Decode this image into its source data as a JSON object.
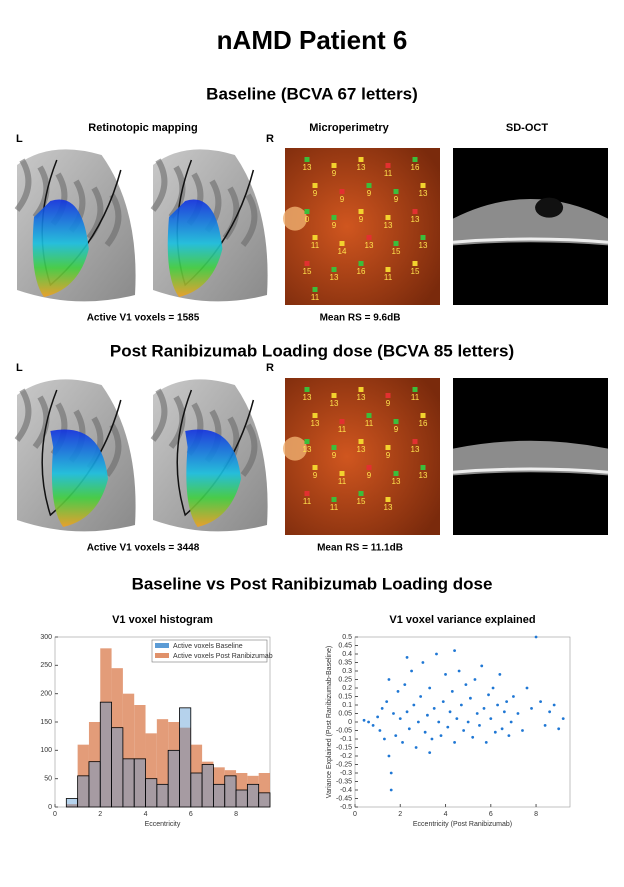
{
  "title": "nAMD Patient 6",
  "sections": [
    {
      "title": "Baseline (BCVA 67 letters)",
      "panel_titles": [
        "Retinotopic mapping",
        "Microperimetry",
        "SD-OCT"
      ],
      "left_label": "L",
      "right_label": "R",
      "voxels_caption": "Active V1 voxels = 1585",
      "rs_caption": "Mean RS = 9.6dB",
      "mp_points": [
        13,
        9,
        13,
        11,
        16,
        9,
        9,
        9,
        9,
        13,
        0,
        9,
        9,
        13,
        13,
        11,
        14,
        13,
        15,
        13,
        15,
        13,
        16,
        11,
        15,
        11
      ]
    },
    {
      "title": "Post Ranibizumab Loading dose (BCVA 85 letters)",
      "left_label": "L",
      "right_label": "R",
      "voxels_caption": "Active V1 voxels = 3448",
      "rs_caption": "Mean RS = 11.1dB",
      "mp_points": [
        13,
        13,
        13,
        9,
        11,
        13,
        11,
        11,
        9,
        16,
        13,
        9,
        13,
        9,
        13,
        9,
        11,
        9,
        13,
        13,
        11,
        11,
        15,
        13
      ]
    }
  ],
  "comparison_title": "Baseline vs Post Ranibizumab Loading dose",
  "chart_data": [
    {
      "type": "histogram",
      "title": "V1 voxel histogram",
      "x_label": "Eccentricity",
      "bins": [
        0.5,
        1,
        1.5,
        2,
        2.5,
        3,
        3.5,
        4,
        4.5,
        5,
        5.5,
        6,
        6.5,
        7,
        7.5,
        8,
        8.5,
        9,
        9.5
      ],
      "series": [
        {
          "name": "Active voxels Baseline",
          "color": "#5b9bd5",
          "values": [
            15,
            55,
            80,
            185,
            140,
            85,
            85,
            50,
            40,
            100,
            175,
            60,
            75,
            40,
            55,
            30,
            40,
            25
          ]
        },
        {
          "name": "Active voxels Post Ranibizumab",
          "color": "#e0916a",
          "values": [
            5,
            110,
            150,
            280,
            245,
            200,
            180,
            130,
            155,
            150,
            140,
            110,
            80,
            70,
            65,
            60,
            55,
            60
          ]
        }
      ],
      "xlim": [
        0,
        9.5
      ],
      "xticks": [
        0,
        2,
        4,
        6,
        8
      ],
      "ylim": [
        0,
        300
      ],
      "yticks": [
        0,
        50,
        100,
        150,
        200,
        250,
        300
      ],
      "legend": "top-right"
    },
    {
      "type": "scatter",
      "title": "V1 voxel variance explained",
      "x_label": "Eccentricity (Post Ranibizumab)",
      "y_label": "Variance Explained (Post Ranibizumab-Baseline)",
      "color": "#1f77d4",
      "x": [
        0.4,
        0.6,
        0.8,
        1.0,
        1.1,
        1.2,
        1.3,
        1.4,
        1.5,
        1.5,
        1.6,
        1.7,
        1.8,
        1.9,
        2.0,
        2.1,
        2.2,
        2.3,
        2.4,
        2.5,
        2.6,
        2.7,
        2.8,
        2.9,
        3.0,
        3.1,
        3.2,
        3.3,
        3.4,
        3.5,
        3.6,
        3.7,
        3.8,
        3.9,
        4.0,
        4.1,
        4.2,
        4.3,
        4.4,
        4.5,
        4.6,
        4.7,
        4.8,
        4.9,
        5.0,
        5.1,
        5.2,
        5.3,
        5.4,
        5.5,
        5.6,
        5.7,
        5.8,
        5.9,
        6.0,
        6.1,
        6.2,
        6.3,
        6.4,
        6.5,
        6.6,
        6.7,
        6.8,
        6.9,
        7.0,
        7.2,
        7.4,
        7.6,
        7.8,
        8.0,
        8.2,
        8.4,
        8.6,
        8.8,
        9.0,
        9.2,
        1.6,
        2.3,
        3.3,
        4.4
      ],
      "y": [
        0.01,
        0.0,
        -0.02,
        0.03,
        -0.05,
        0.08,
        -0.1,
        0.12,
        -0.2,
        0.25,
        -0.3,
        0.05,
        -0.08,
        0.18,
        0.02,
        -0.12,
        0.22,
        0.06,
        -0.04,
        0.3,
        0.1,
        -0.15,
        0.0,
        0.15,
        0.35,
        -0.06,
        0.04,
        0.2,
        -0.1,
        0.08,
        0.4,
        0.0,
        -0.08,
        0.12,
        0.28,
        -0.03,
        0.06,
        0.18,
        -0.12,
        0.02,
        0.3,
        0.1,
        -0.05,
        0.22,
        0.0,
        0.14,
        -0.09,
        0.25,
        0.05,
        -0.02,
        0.33,
        0.08,
        -0.12,
        0.16,
        0.02,
        0.2,
        -0.06,
        0.1,
        0.28,
        -0.04,
        0.06,
        0.12,
        -0.08,
        0.0,
        0.15,
        0.05,
        -0.05,
        0.2,
        0.08,
        0.5,
        0.12,
        -0.02,
        0.06,
        0.1,
        -0.04,
        0.02,
        -0.4,
        0.38,
        -0.18,
        0.42
      ],
      "xlim": [
        0,
        9.5
      ],
      "xticks": [
        0,
        2,
        4,
        6,
        8
      ],
      "ylim": [
        -0.5,
        0.5
      ],
      "yticks": [
        -0.5,
        -0.45,
        -0.4,
        -0.35,
        -0.3,
        -0.25,
        -0.2,
        -0.15,
        -0.1,
        -0.05,
        0,
        0.05,
        0.1,
        0.15,
        0.2,
        0.25,
        0.3,
        0.35,
        0.4,
        0.45,
        0.5
      ]
    }
  ]
}
